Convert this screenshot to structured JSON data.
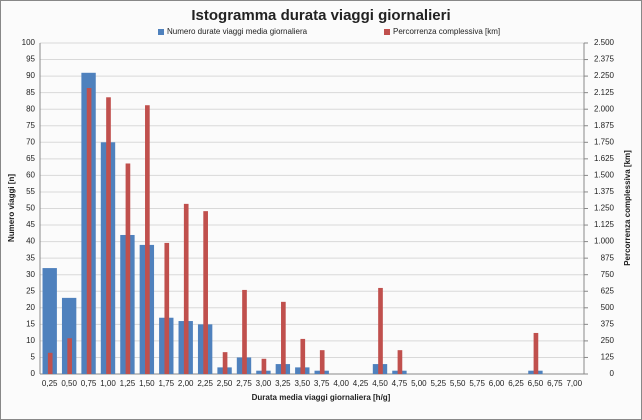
{
  "chart_data": {
    "type": "bar",
    "title": "Istogramma durata viaggi giornalieri",
    "x_label": "Durata media viaggi giornaliera [h/g]",
    "y_label": "Numero viaggi [n]",
    "y2_label": "Percorrenza complessiva [km]",
    "categories": [
      "0,25",
      "0,50",
      "0,75",
      "1,00",
      "1,25",
      "1,50",
      "1,75",
      "2,00",
      "2,25",
      "2,50",
      "2,75",
      "3,00",
      "3,25",
      "3,50",
      "3,75",
      "4,00",
      "4,25",
      "4,50",
      "4,75",
      "5,00",
      "5,25",
      "5,50",
      "5,75",
      "6,00",
      "6,25",
      "6,50",
      "6,75",
      "7,00"
    ],
    "series": [
      {
        "name": "Numero durate viaggi media giornaliera",
        "color": "#4f81bd",
        "axis": "y",
        "values": [
          32,
          23,
          91,
          70,
          42,
          39,
          17,
          16,
          15,
          2,
          5,
          1,
          3,
          2,
          1,
          0,
          0,
          3,
          1,
          0,
          0,
          0,
          0,
          0,
          0,
          1,
          0,
          0
        ]
      },
      {
        "name": "Percorrenza complessiva [km]",
        "color": "#c0504d",
        "axis": "y2",
        "values": [
          160,
          270,
          2160,
          2090,
          1590,
          2030,
          990,
          1285,
          1230,
          165,
          635,
          115,
          545,
          265,
          180,
          0,
          0,
          650,
          180,
          0,
          0,
          0,
          0,
          0,
          0,
          310,
          0,
          0
        ]
      }
    ],
    "ylim": [
      0,
      100
    ],
    "yticks": [
      0,
      5,
      10,
      15,
      20,
      25,
      30,
      35,
      40,
      45,
      50,
      55,
      60,
      65,
      70,
      75,
      80,
      85,
      90,
      95,
      100
    ],
    "y2lim": [
      0,
      2500
    ],
    "y2ticks": [
      0,
      125,
      250,
      375,
      500,
      625,
      750,
      875,
      {
        "value": 1000,
        "label": "1.000"
      },
      {
        "value": 1125,
        "label": "1.125"
      },
      {
        "value": 1250,
        "label": "1.250"
      },
      {
        "value": 1375,
        "label": "1.375"
      },
      {
        "value": 1500,
        "label": "1.500"
      },
      {
        "value": 1625,
        "label": "1.625"
      },
      {
        "value": 1750,
        "label": "1.750"
      },
      {
        "value": 1875,
        "label": "1.875"
      },
      {
        "value": 2000,
        "label": "2.000"
      },
      {
        "value": 2125,
        "label": "2.125"
      },
      {
        "value": 2250,
        "label": "2.250"
      },
      {
        "value": 2375,
        "label": "2.375"
      },
      {
        "value": 2500,
        "label": "2.500"
      }
    ],
    "grid": true,
    "legend": "top"
  }
}
